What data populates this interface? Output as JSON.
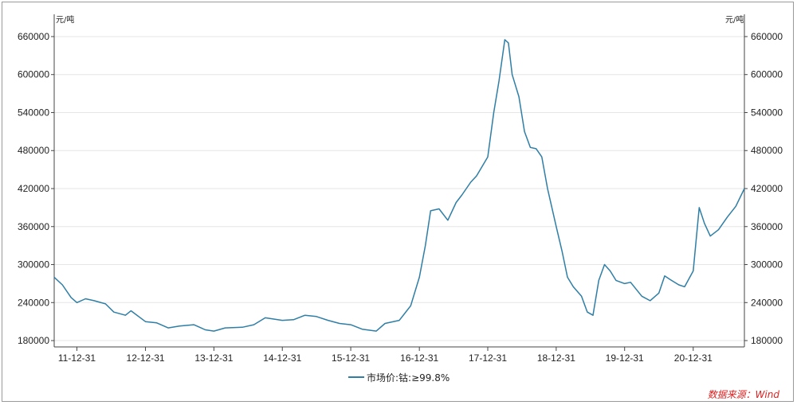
{
  "chart_data": {
    "type": "line",
    "y_unit_left": "元/吨",
    "y_unit_right": "元/吨",
    "ylim": [
      170000,
      670000
    ],
    "y_ticks": [
      180000,
      240000,
      300000,
      360000,
      420000,
      480000,
      540000,
      600000,
      660000
    ],
    "y_tick_labels": [
      "180000",
      "240000",
      "300000",
      "360000",
      "420000",
      "480000",
      "540000",
      "600000",
      "660000"
    ],
    "x_ticks": [
      "11-12-31",
      "12-12-31",
      "13-12-31",
      "14-12-31",
      "15-12-31",
      "16-12-31",
      "17-12-31",
      "18-12-31",
      "19-12-31",
      "20-12-31"
    ],
    "x_start": "2011-09-01",
    "x_end": "2021-09-30",
    "grid": true,
    "legend_position": "bottom-center",
    "series": [
      {
        "name": "市场价:钴:≥99.8%",
        "color": "#2e7ea6",
        "points": [
          [
            "2011-09-01",
            280000
          ],
          [
            "2011-10-15",
            268000
          ],
          [
            "2011-11-30",
            248000
          ],
          [
            "2011-12-31",
            240000
          ],
          [
            "2012-02-15",
            246000
          ],
          [
            "2012-04-01",
            243000
          ],
          [
            "2012-06-01",
            238000
          ],
          [
            "2012-07-15",
            225000
          ],
          [
            "2012-09-15",
            220000
          ],
          [
            "2012-10-15",
            227000
          ],
          [
            "2012-12-31",
            210000
          ],
          [
            "2013-03-01",
            208000
          ],
          [
            "2013-05-01",
            200000
          ],
          [
            "2013-07-01",
            203000
          ],
          [
            "2013-09-15",
            205000
          ],
          [
            "2013-11-15",
            197000
          ],
          [
            "2013-12-31",
            195000
          ],
          [
            "2014-03-01",
            200000
          ],
          [
            "2014-06-01",
            201000
          ],
          [
            "2014-08-01",
            205000
          ],
          [
            "2014-10-01",
            216000
          ],
          [
            "2014-12-31",
            212000
          ],
          [
            "2015-03-01",
            213000
          ],
          [
            "2015-05-01",
            220000
          ],
          [
            "2015-07-01",
            218000
          ],
          [
            "2015-09-01",
            212000
          ],
          [
            "2015-11-01",
            207000
          ],
          [
            "2015-12-31",
            205000
          ],
          [
            "2016-03-01",
            198000
          ],
          [
            "2016-05-15",
            195000
          ],
          [
            "2016-07-01",
            207000
          ],
          [
            "2016-09-15",
            212000
          ],
          [
            "2016-11-15",
            235000
          ],
          [
            "2016-12-31",
            280000
          ],
          [
            "2017-02-01",
            330000
          ],
          [
            "2017-03-01",
            385000
          ],
          [
            "2017-04-15",
            388000
          ],
          [
            "2017-06-01",
            370000
          ],
          [
            "2017-07-15",
            398000
          ],
          [
            "2017-08-15",
            410000
          ],
          [
            "2017-10-01",
            430000
          ],
          [
            "2017-11-01",
            440000
          ],
          [
            "2017-12-31",
            470000
          ],
          [
            "2018-02-01",
            540000
          ],
          [
            "2018-03-01",
            590000
          ],
          [
            "2018-04-01",
            655000
          ],
          [
            "2018-04-20",
            650000
          ],
          [
            "2018-05-10",
            600000
          ],
          [
            "2018-06-15",
            565000
          ],
          [
            "2018-07-15",
            510000
          ],
          [
            "2018-08-15",
            485000
          ],
          [
            "2018-09-15",
            483000
          ],
          [
            "2018-10-15",
            470000
          ],
          [
            "2018-11-15",
            420000
          ],
          [
            "2018-12-31",
            360000
          ],
          [
            "2019-02-01",
            320000
          ],
          [
            "2019-03-01",
            280000
          ],
          [
            "2019-04-01",
            265000
          ],
          [
            "2019-05-15",
            250000
          ],
          [
            "2019-06-15",
            225000
          ],
          [
            "2019-07-15",
            220000
          ],
          [
            "2019-08-15",
            275000
          ],
          [
            "2019-09-15",
            300000
          ],
          [
            "2019-10-15",
            290000
          ],
          [
            "2019-11-15",
            275000
          ],
          [
            "2019-12-31",
            270000
          ],
          [
            "2020-02-01",
            272000
          ],
          [
            "2020-04-01",
            250000
          ],
          [
            "2020-05-15",
            243000
          ],
          [
            "2020-07-01",
            255000
          ],
          [
            "2020-08-01",
            282000
          ],
          [
            "2020-09-01",
            276000
          ],
          [
            "2020-10-15",
            268000
          ],
          [
            "2020-11-15",
            265000
          ],
          [
            "2020-12-31",
            290000
          ],
          [
            "2021-02-01",
            390000
          ],
          [
            "2021-03-01",
            365000
          ],
          [
            "2021-04-01",
            345000
          ],
          [
            "2021-05-15",
            355000
          ],
          [
            "2021-07-01",
            375000
          ],
          [
            "2021-08-15",
            392000
          ],
          [
            "2021-09-30",
            420000
          ]
        ]
      }
    ]
  },
  "legend": {
    "label": "市场价:钴:≥99.8%"
  },
  "source": {
    "text": "数据来源：Wind"
  }
}
